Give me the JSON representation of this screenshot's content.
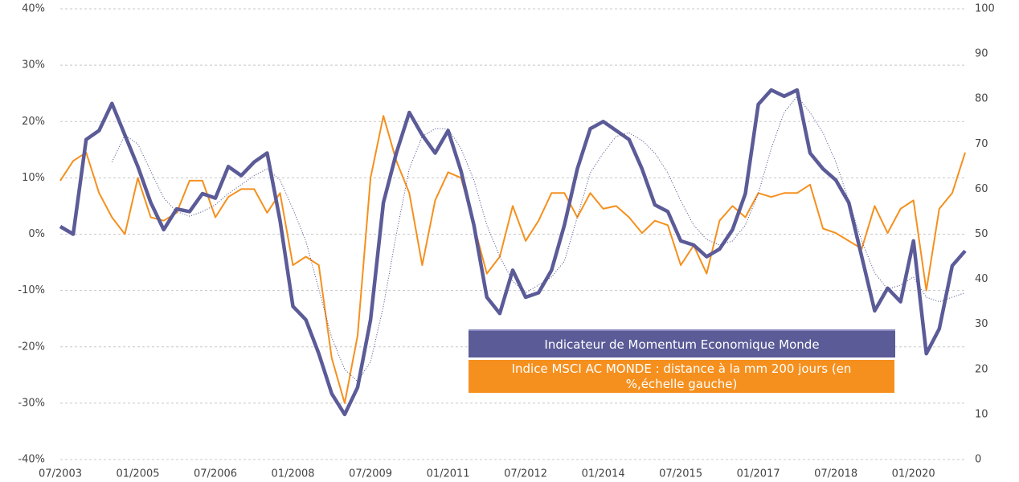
{
  "chart_data": {
    "type": "line",
    "categories": [
      "07/2003",
      null,
      null,
      null,
      null,
      null,
      "01/2005",
      null,
      null,
      null,
      null,
      null,
      "07/2006",
      null,
      null,
      null,
      null,
      null,
      "01/2008",
      null,
      null,
      null,
      null,
      null,
      "07/2009",
      null,
      null,
      null,
      null,
      null,
      "01/2011",
      null,
      null,
      null,
      null,
      null,
      "07/2012",
      null,
      null,
      null,
      null,
      null,
      "01/2014",
      null,
      null,
      null,
      null,
      null,
      "07/2015",
      null,
      null,
      null,
      null,
      null,
      "01/2017",
      null,
      null,
      null,
      null,
      null,
      "07/2018",
      null,
      null,
      null,
      null,
      null,
      "01/2020",
      null,
      null,
      null,
      null
    ],
    "ylim": [
      -40,
      40
    ],
    "yticks": [
      {
        "value": -40,
        "label": "-40%"
      },
      {
        "value": -30,
        "label": "-30%"
      },
      {
        "value": -20,
        "label": "-20%"
      },
      {
        "value": -10,
        "label": "-10%"
      },
      {
        "value": 0,
        "label": "0%"
      },
      {
        "value": 10,
        "label": "10%"
      },
      {
        "value": 20,
        "label": "20%"
      },
      {
        "value": 30,
        "label": "30%"
      },
      {
        "value": 40,
        "label": "40%"
      }
    ],
    "y2lim": [
      0,
      100
    ],
    "y2ticks": [
      0,
      10,
      20,
      30,
      40,
      50,
      60,
      70,
      80,
      90,
      100
    ],
    "grid": true,
    "series": [
      {
        "name": "Indicateur de Momentum Economique Monde",
        "color": "#5b5b98",
        "axis": "y2",
        "values": [
          51.7,
          50,
          71,
          73,
          79,
          72,
          65,
          57,
          51,
          55.6,
          55,
          59,
          58,
          65,
          63,
          66,
          68,
          53,
          34,
          31,
          23.5,
          14.6,
          10,
          16,
          31,
          57,
          68,
          77,
          72,
          68,
          73,
          64,
          52,
          36,
          32.4,
          42,
          36,
          37,
          42,
          52,
          64.5,
          73.4,
          75,
          73,
          71,
          64.5,
          56.5,
          55,
          48.5,
          47.6,
          45,
          46.7,
          51,
          59,
          78.8,
          82,
          80.6,
          82,
          68,
          64.5,
          62,
          57,
          45,
          33,
          38,
          35,
          48.5,
          23.5,
          29,
          43,
          46.3
        ]
      },
      {
        "name": "Indice MSCI AC MONDE : distance à la mm 200 jours (en %,échelle gauche)",
        "color": "#f5901e",
        "values": [
          9.5,
          13,
          14.5,
          7.3,
          3,
          0,
          10,
          3,
          2.4,
          3.8,
          9.5,
          9.5,
          3,
          6.6,
          8,
          8,
          3.8,
          7.3,
          -5.5,
          -4,
          -5.5,
          -22,
          -30,
          -18,
          10,
          21,
          13,
          7.3,
          -5.5,
          6,
          11,
          10,
          1.6,
          -7,
          -4,
          5,
          -1.2,
          2.4,
          7.3,
          7.3,
          3,
          7.3,
          4.5,
          5,
          3,
          0.2,
          2.4,
          1.6,
          -5.5,
          -2,
          -7,
          2.4,
          5,
          3,
          7.3,
          6.6,
          7.3,
          7.3,
          8.8,
          1,
          0.2,
          -1.2,
          -2.6,
          5,
          0.2,
          4.5,
          6,
          -10,
          4.5,
          7.3,
          14.5
        ]
      },
      {
        "color": "#4a4a86",
        "axis": "y2",
        "dash": true,
        "values": [
          null,
          null,
          null,
          null,
          66,
          72,
          70,
          64,
          58,
          55,
          54,
          55,
          56.5,
          59,
          61,
          63,
          64.5,
          62,
          55.6,
          48.5,
          37.8,
          27,
          20,
          17.3,
          21.7,
          34,
          50,
          64.5,
          71.7,
          73.4,
          73.4,
          69,
          62,
          52,
          45,
          39.6,
          37,
          38.7,
          40.5,
          44,
          53.8,
          63.6,
          68,
          71.7,
          72.5,
          70.8,
          68,
          63.6,
          57.4,
          52,
          48.8,
          47.6,
          48.5,
          52,
          59,
          69,
          77,
          80.6,
          77,
          72.5,
          66,
          57.4,
          48.5,
          41.4,
          37.8,
          38.7,
          40.5,
          36,
          35,
          36,
          37
        ]
      }
    ]
  }
}
